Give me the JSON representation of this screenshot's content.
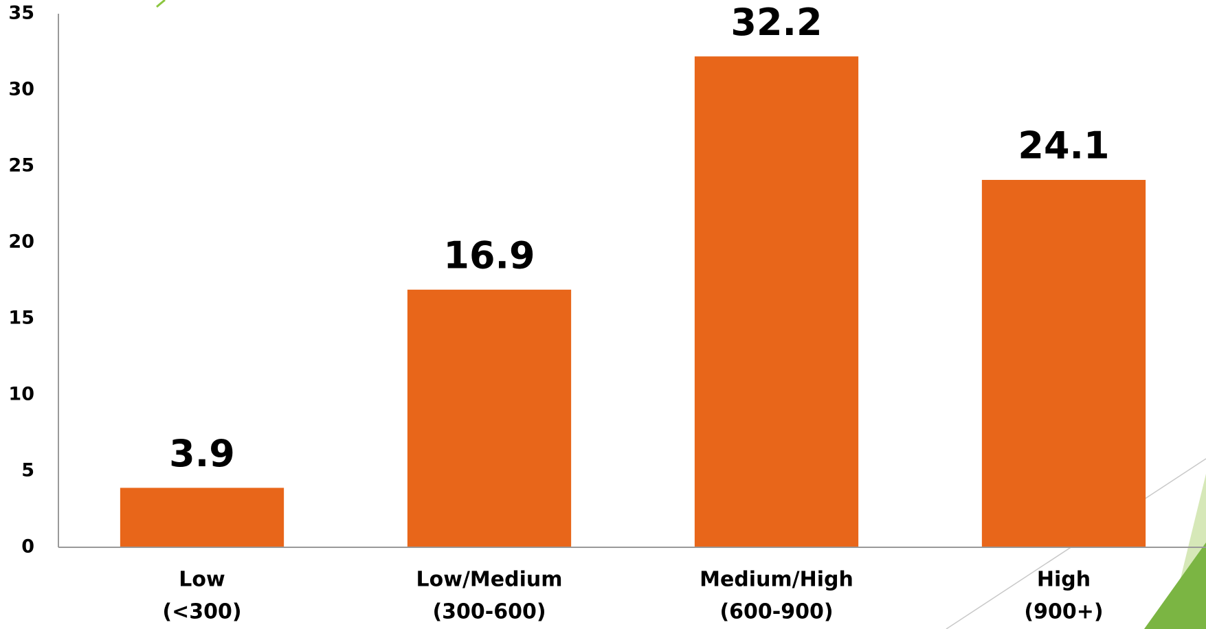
{
  "chart_data": {
    "type": "bar",
    "categories": [
      [
        "Low",
        "(<300)"
      ],
      [
        "Low/Medium",
        "(300-600)"
      ],
      [
        "Medium/High",
        "(600-900)"
      ],
      [
        "High",
        "(900+)"
      ]
    ],
    "values": [
      3.9,
      16.9,
      32.2,
      24.1
    ],
    "color": "#e8661a",
    "ylim": [
      0,
      35
    ],
    "yticks": [
      0,
      5,
      10,
      15,
      20,
      25,
      30,
      35
    ],
    "grid": false
  }
}
